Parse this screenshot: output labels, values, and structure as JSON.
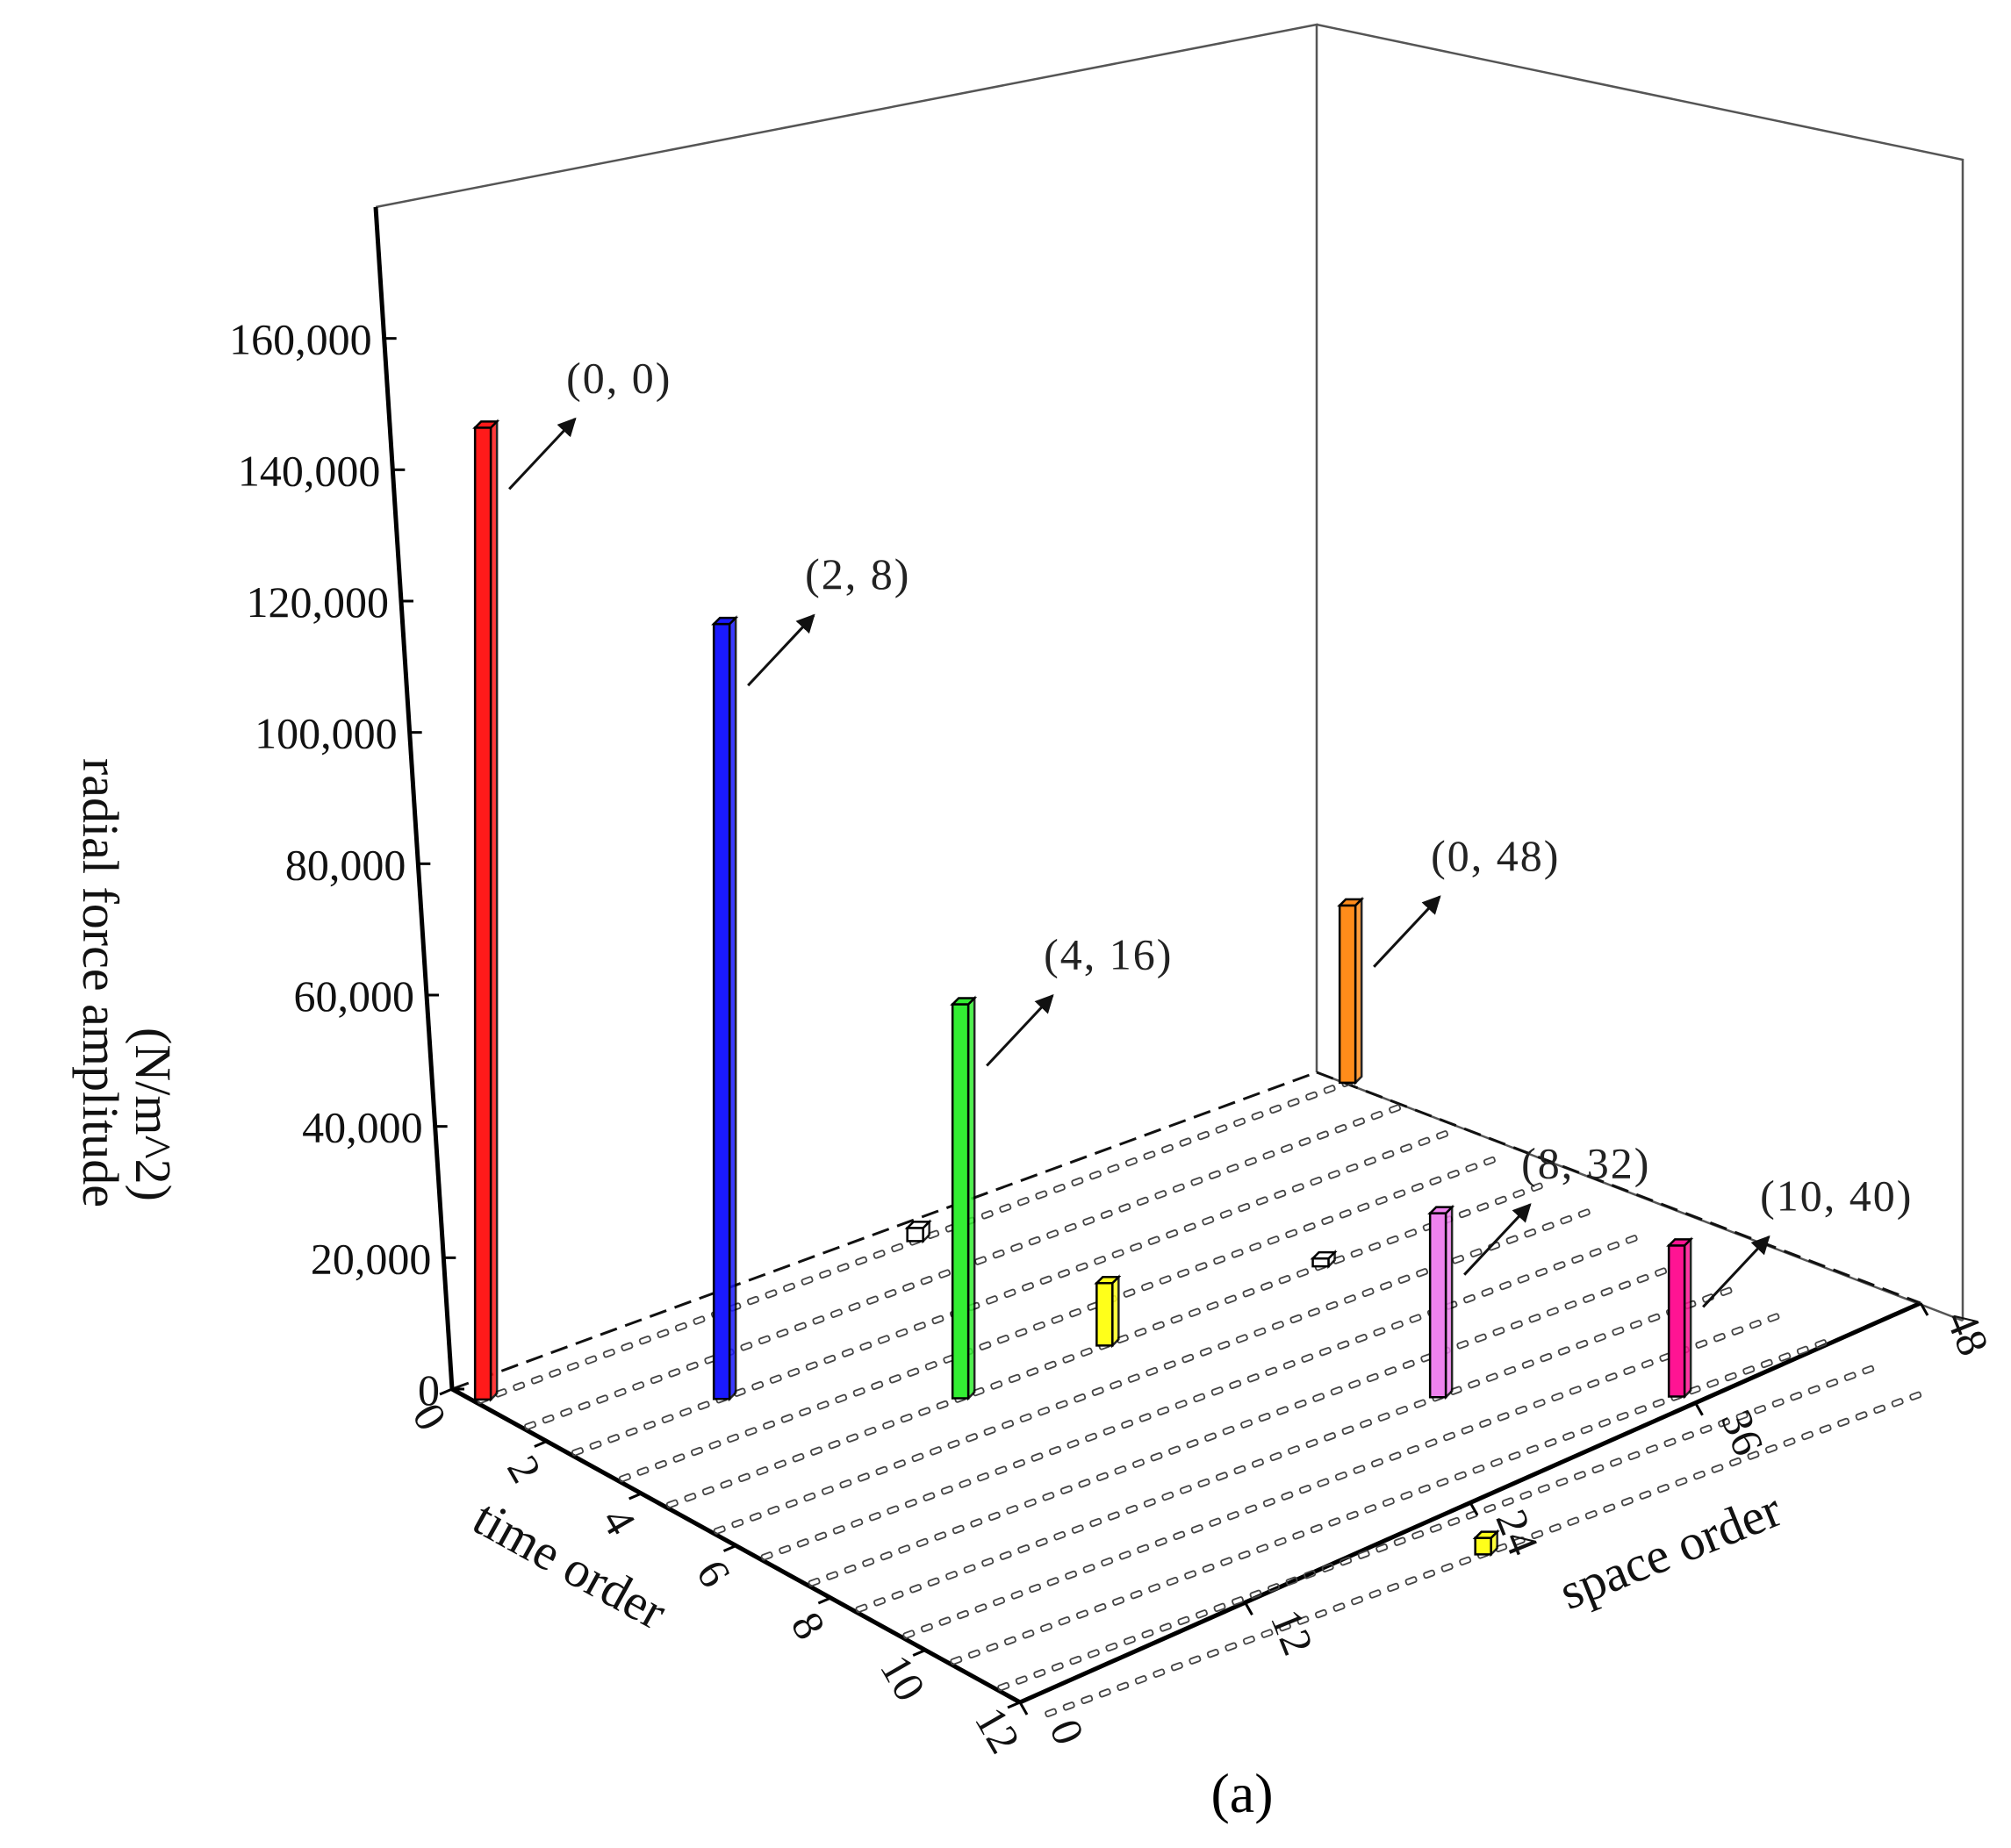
{
  "figure": {
    "sublabel": "(a)"
  },
  "chart_data": {
    "type": "bar3d",
    "title": "",
    "zlabel": "radial force amplitude",
    "zunit": "(N/m^2)",
    "xlabel": "time order",
    "ylabel": "space order",
    "zlim": [
      0,
      160000
    ],
    "z_ticks": [
      "0",
      "20,000",
      "40,000",
      "60,000",
      "80,000",
      "100,000",
      "120,000",
      "140,000",
      "160,000"
    ],
    "z_tick_values": [
      0,
      20000,
      40000,
      60000,
      80000,
      100000,
      120000,
      140000,
      160000
    ],
    "time_ticks": [
      "0",
      "2",
      "4",
      "6",
      "8",
      "10",
      "12"
    ],
    "space_ticks": [
      "0",
      "12",
      "24",
      "36",
      "48"
    ],
    "time_range": [
      0,
      12
    ],
    "space_range": [
      0,
      48
    ],
    "bars": [
      {
        "time": 0,
        "space": 0,
        "value": 148000,
        "color": "#ff1a1a",
        "label": "(0, 0)"
      },
      {
        "time": 2,
        "space": 8,
        "value": 118000,
        "color": "#1a1aff",
        "label": "(2, 8)"
      },
      {
        "time": 4,
        "space": 16,
        "value": 60000,
        "color": "#33ee33",
        "label": "(4, 16)"
      },
      {
        "time": 0,
        "space": 48,
        "value": 27000,
        "color": "#ff8c1a",
        "label": "(0, 48)"
      },
      {
        "time": 8,
        "space": 32,
        "value": 28000,
        "color": "#ee82ee",
        "label": "(8, 32)"
      },
      {
        "time": 10,
        "space": 40,
        "value": 23000,
        "color": "#ff1493",
        "label": "(10, 40)"
      },
      {
        "time": 4,
        "space": 24,
        "value": 9500,
        "color": "#ffff1a",
        "label": ""
      },
      {
        "time": 12,
        "space": 24,
        "value": 2500,
        "color": "#ffff1a",
        "label": ""
      },
      {
        "time": 0,
        "space": 24,
        "value": 2000,
        "color": "#ffffff",
        "label": ""
      },
      {
        "time": 4,
        "space": 36,
        "value": 1200,
        "color": "#ffffff",
        "label": ""
      }
    ]
  }
}
